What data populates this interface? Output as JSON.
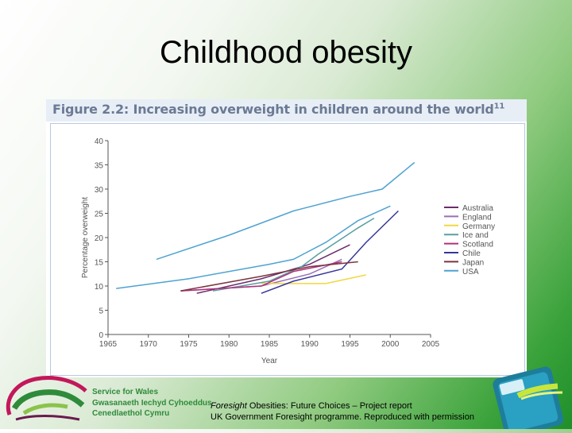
{
  "slide": {
    "title": "Childhood obesity"
  },
  "figure": {
    "title": "Figure 2.2: Increasing overweight in children around the world",
    "title_sup": "11"
  },
  "chart_data": {
    "type": "line",
    "title": "Figure 2.2: Increasing overweight in children around the world",
    "xlabel": "Year",
    "ylabel": "Percentage overweight",
    "xlim": [
      1965,
      2005
    ],
    "ylim": [
      0,
      40
    ],
    "xticks": [
      1965,
      1970,
      1975,
      1980,
      1985,
      1990,
      1995,
      2000,
      2005
    ],
    "yticks": [
      0,
      5,
      10,
      15,
      20,
      25,
      30,
      35,
      40
    ],
    "legend_position": "right",
    "series": [
      {
        "name": "Australia",
        "color": "#6b2d6b",
        "points": [
          [
            1976,
            8.5
          ],
          [
            1984,
            11.5
          ],
          [
            1990,
            14.5
          ],
          [
            1995,
            18.5
          ]
        ]
      },
      {
        "name": "England",
        "color": "#9a6fb5",
        "points": [
          [
            1974,
            9
          ],
          [
            1984,
            10
          ],
          [
            1990,
            12.5
          ],
          [
            1994,
            15.5
          ]
        ]
      },
      {
        "name": "Germany",
        "color": "#f0d840",
        "points": [
          [
            1984,
            10.5
          ],
          [
            1992,
            10.5
          ],
          [
            1997,
            12.3
          ]
        ]
      },
      {
        "name": "Ice and",
        "color": "#5a9ea0",
        "points": [
          [
            1978,
            9
          ],
          [
            1985,
            11
          ],
          [
            1989,
            14
          ],
          [
            1991,
            16.5
          ],
          [
            1996,
            22
          ],
          [
            1998,
            24
          ]
        ]
      },
      {
        "name": "Scotland",
        "color": "#b0307a",
        "points": [
          [
            1974,
            9
          ],
          [
            1984,
            10
          ],
          [
            1988,
            13
          ],
          [
            1994,
            15
          ]
        ]
      },
      {
        "name": "Chile",
        "color": "#36359a",
        "points": [
          [
            1984,
            8.5
          ],
          [
            1988,
            11
          ],
          [
            1994,
            13.5
          ],
          [
            1997,
            19
          ],
          [
            2001,
            25.5
          ]
        ]
      },
      {
        "name": "Japan",
        "color": "#7a3540",
        "points": [
          [
            1974,
            9
          ],
          [
            1984,
            12
          ],
          [
            1990,
            14
          ],
          [
            1996,
            15
          ]
        ]
      },
      {
        "name": "USA",
        "color": "#4fa3d1",
        "points": [
          [
            1966,
            9.5
          ],
          [
            1975,
            11.5
          ],
          [
            1985,
            14.5
          ],
          [
            1988,
            15.5
          ],
          [
            1992,
            19
          ],
          [
            1996,
            23.5
          ],
          [
            2000,
            26.5
          ]
        ]
      },
      {
        "name": "USA",
        "color": "#4fa3d1",
        "points": [
          [
            1971,
            15.5
          ],
          [
            1980,
            20.5
          ],
          [
            1988,
            25.5
          ],
          [
            1995,
            28.5
          ],
          [
            1999,
            30
          ],
          [
            2003,
            35.5
          ]
        ]
      }
    ]
  },
  "footer": {
    "org_name": "Service for Wales",
    "welsh_line1": "Gwasanaeth Iechyd Cyhoeddus",
    "welsh_line2": "Cenedlaethol Cymru",
    "citation_italic": "Foresight",
    "citation_line1_rest": " Obesities: Future Choices – Project report",
    "citation_line2": "UK Government Foresight programme. Reproduced with permission"
  },
  "colors": {
    "brand_green": "#2e8b3a",
    "figure_title": "#6b7a94",
    "chart_border": "#b7c9df"
  }
}
